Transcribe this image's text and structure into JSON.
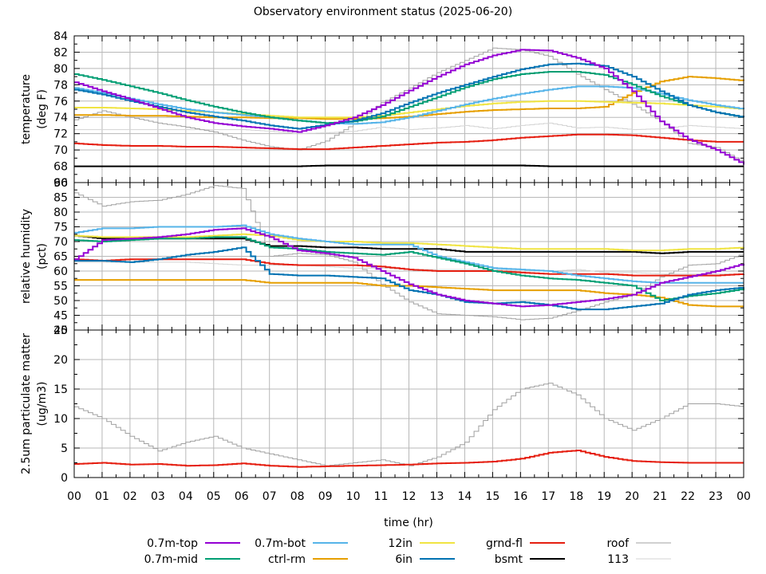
{
  "chart_data": {
    "type": "line",
    "title": "Observatory environment status (2025-06-20)",
    "xlabel": "time (hr)",
    "x_tick_labels": [
      "00",
      "01",
      "02",
      "03",
      "04",
      "05",
      "06",
      "07",
      "08",
      "09",
      "10",
      "11",
      "12",
      "13",
      "14",
      "15",
      "16",
      "17",
      "18",
      "19",
      "20",
      "21",
      "22",
      "23",
      "00"
    ],
    "xlim": [
      0,
      24
    ],
    "grid": true,
    "legend_placement": "bottom",
    "x": [
      0,
      1,
      2,
      3,
      4,
      5,
      6,
      7,
      8,
      9,
      10,
      11,
      12,
      13,
      14,
      15,
      16,
      17,
      18,
      19,
      20,
      21,
      22,
      23,
      24
    ],
    "series_meta": [
      {
        "name": "0.7m-top",
        "color": "#9400d3"
      },
      {
        "name": "0.7m-mid",
        "color": "#009e73"
      },
      {
        "name": "0.7m-bot",
        "color": "#56b4e9"
      },
      {
        "name": "ctrl-rm",
        "color": "#e69f00"
      },
      {
        "name": "12in",
        "color": "#f0e442"
      },
      {
        "name": "6in",
        "color": "#0072b2"
      },
      {
        "name": "grnd-fl",
        "color": "#e51e10"
      },
      {
        "name": "bsmt",
        "color": "#000000"
      },
      {
        "name": "roof",
        "color": "#a0a0a0"
      },
      {
        "name": "113",
        "color": "#d3d3d3"
      }
    ],
    "panels": [
      {
        "name": "temperature",
        "ylabel": [
          "temperature",
          "(deg F)"
        ],
        "ylim": [
          66,
          84
        ],
        "y_ticks": [
          66,
          68,
          70,
          72,
          74,
          76,
          78,
          80,
          82,
          84
        ],
        "series": [
          {
            "name": "0.7m-top",
            "values": [
              78.3,
              77.2,
              76.2,
              75.1,
              74.0,
              73.3,
              72.9,
              72.6,
              72.2,
              73.0,
              74.0,
              75.5,
              77.3,
              79.0,
              80.5,
              81.6,
              82.3,
              82.2,
              81.3,
              80.0,
              77.2,
              73.5,
              71.3,
              70.0,
              68.2
            ]
          },
          {
            "name": "0.7m-mid",
            "values": [
              79.3,
              78.6,
              77.8,
              77.0,
              76.1,
              75.3,
              74.6,
              74.0,
              73.6,
              73.3,
              73.5,
              74.1,
              75.3,
              76.5,
              77.7,
              78.7,
              79.3,
              79.6,
              79.6,
              79.2,
              78.0,
              76.6,
              75.5,
              74.6,
              74.0
            ]
          },
          {
            "name": "0.7m-bot",
            "values": [
              77.6,
              77.0,
              76.3,
              75.6,
              75.0,
              74.6,
              74.3,
              74.0,
              73.6,
              73.3,
              73.2,
              73.4,
              74.0,
              74.8,
              75.6,
              76.3,
              76.9,
              77.4,
              77.8,
              77.8,
              77.6,
              76.9,
              76.1,
              75.5,
              75.0
            ]
          },
          {
            "name": "ctrl-rm",
            "values": [
              74.3,
              74.3,
              74.2,
              74.2,
              74.1,
              74.0,
              74.0,
              73.9,
              73.9,
              73.8,
              73.8,
              73.9,
              74.1,
              74.4,
              74.7,
              74.9,
              75.0,
              75.1,
              75.1,
              75.3,
              77.0,
              78.4,
              79.0,
              78.8,
              78.5
            ]
          },
          {
            "name": "12in",
            "values": [
              75.2,
              75.2,
              75.1,
              75.0,
              74.8,
              74.6,
              74.4,
              74.2,
              74.0,
              74.0,
              74.0,
              74.2,
              74.6,
              75.0,
              75.4,
              75.7,
              75.9,
              76.0,
              76.0,
              75.9,
              75.8,
              75.7,
              75.5,
              75.3,
              75.0
            ]
          },
          {
            "name": "6in",
            "values": [
              77.4,
              76.8,
              76.0,
              75.3,
              74.6,
              74.1,
              73.6,
              73.0,
              72.6,
              73.1,
              73.6,
              74.5,
              75.8,
              77.0,
              78.0,
              79.0,
              79.9,
              80.5,
              80.6,
              80.3,
              79.0,
              77.2,
              75.5,
              74.6,
              74.0
            ]
          },
          {
            "name": "grnd-fl",
            "values": [
              70.8,
              70.6,
              70.5,
              70.5,
              70.4,
              70.4,
              70.3,
              70.2,
              70.1,
              70.1,
              70.3,
              70.5,
              70.7,
              70.9,
              71.0,
              71.2,
              71.5,
              71.7,
              71.9,
              71.9,
              71.8,
              71.5,
              71.2,
              71.0,
              71.0
            ]
          },
          {
            "name": "bsmt",
            "values": [
              68.0,
              68.0,
              68.0,
              68.0,
              68.0,
              68.0,
              68.0,
              68.0,
              68.0,
              68.1,
              68.1,
              68.1,
              68.1,
              68.1,
              68.1,
              68.1,
              68.1,
              68.0,
              68.0,
              68.0,
              68.0,
              68.0,
              68.0,
              68.0,
              68.0
            ]
          },
          {
            "name": "roof",
            "values": [
              73.7,
              74.8,
              74.0,
              73.3,
              72.8,
              72.2,
              71.2,
              70.4,
              70.0,
              71.1,
              73.2,
              75.8,
              77.6,
              79.5,
              81.0,
              82.5,
              82.3,
              81.5,
              79.3,
              77.4,
              75.6,
              73.5,
              70.8,
              70.3,
              68.4
            ]
          },
          {
            "name": "113",
            "values": [
              72.5,
              72.5,
              72.5,
              72.5,
              72.5,
              72.5,
              72.5,
              72.3,
              72.0,
              72.1,
              72.3,
              72.8,
              72.5,
              72.7,
              73.0,
              72.6,
              73.0,
              73.3,
              72.7,
              72.8,
              72.5,
              72.6,
              73.0,
              72.8,
              72.6
            ]
          }
        ]
      },
      {
        "name": "humidity",
        "ylabel": [
          "relative humidity",
          "(pct)"
        ],
        "ylim": [
          40,
          90
        ],
        "y_ticks": [
          40,
          45,
          50,
          55,
          60,
          65,
          70,
          75,
          80,
          85,
          90
        ],
        "series": [
          {
            "name": "0.7m-top",
            "values": [
              64.0,
              70.5,
              71.0,
              71.5,
              72.5,
              74.0,
              74.5,
              71.5,
              67.0,
              66.0,
              64.5,
              60.0,
              55.5,
              52.0,
              50.0,
              49.0,
              48.0,
              48.5,
              49.5,
              50.5,
              52.0,
              56.0,
              58.0,
              60.0,
              62.5
            ]
          },
          {
            "name": "0.7m-mid",
            "values": [
              70.5,
              70.0,
              70.5,
              71.0,
              71.0,
              71.5,
              71.5,
              68.0,
              67.5,
              66.5,
              66.0,
              65.5,
              66.5,
              64.5,
              62.5,
              60.0,
              58.5,
              57.5,
              57.0,
              56.0,
              55.0,
              50.0,
              51.5,
              52.5,
              54.0
            ]
          },
          {
            "name": "0.7m-bot",
            "values": [
              73.0,
              74.5,
              74.5,
              75.0,
              75.0,
              75.0,
              75.5,
              72.5,
              71.0,
              70.0,
              69.0,
              69.0,
              69.0,
              65.0,
              63.0,
              61.0,
              60.5,
              60.0,
              58.5,
              57.5,
              56.5,
              56.0,
              56.0,
              56.0,
              56.0
            ]
          },
          {
            "name": "ctrl-rm",
            "values": [
              57.0,
              57.0,
              57.0,
              57.0,
              57.0,
              57.0,
              57.0,
              56.0,
              56.0,
              56.0,
              56.0,
              55.0,
              55.0,
              54.5,
              54.0,
              53.5,
              53.5,
              53.5,
              53.5,
              52.5,
              52.0,
              51.0,
              48.5,
              48.0,
              48.0
            ]
          },
          {
            "name": "12in",
            "values": [
              72.0,
              71.5,
              71.5,
              71.5,
              71.5,
              72.0,
              72.5,
              72.0,
              70.5,
              70.0,
              70.0,
              69.5,
              69.5,
              69.0,
              68.5,
              68.0,
              67.5,
              67.5,
              67.5,
              67.5,
              67.0,
              67.0,
              67.5,
              67.5,
              68.0
            ]
          },
          {
            "name": "6in",
            "values": [
              63.5,
              63.5,
              63.0,
              64.0,
              65.5,
              66.5,
              68.0,
              59.0,
              58.5,
              58.5,
              58.0,
              57.5,
              53.5,
              52.0,
              49.5,
              49.0,
              49.5,
              48.5,
              47.0,
              47.0,
              48.0,
              49.0,
              52.0,
              53.5,
              54.5
            ]
          },
          {
            "name": "grnd-fl",
            "values": [
              64.0,
              63.5,
              64.0,
              64.0,
              64.0,
              64.0,
              64.0,
              62.5,
              62.0,
              62.0,
              62.0,
              61.5,
              60.5,
              60.0,
              60.0,
              60.0,
              59.5,
              59.0,
              59.0,
              59.0,
              58.5,
              58.5,
              58.5,
              58.5,
              59.0
            ]
          },
          {
            "name": "bsmt",
            "values": [
              72.0,
              71.0,
              71.0,
              71.0,
              71.0,
              71.0,
              71.0,
              68.5,
              68.5,
              68.0,
              68.0,
              67.5,
              67.5,
              67.5,
              66.5,
              66.5,
              66.5,
              66.5,
              66.5,
              66.5,
              66.5,
              66.0,
              66.5,
              66.5,
              66.5
            ]
          },
          {
            "name": "roof",
            "values": [
              86.5,
              82.0,
              83.5,
              84.0,
              86.0,
              89.0,
              88.0,
              65.0,
              66.0,
              65.5,
              63.0,
              55.5,
              49.5,
              45.5,
              45.0,
              44.5,
              43.5,
              44.0,
              46.5,
              49.5,
              52.0,
              58.0,
              62.0,
              62.5,
              66.0
            ]
          },
          {
            "name": "113",
            "values": [
              63.0,
              63.0,
              63.0,
              63.0,
              63.0,
              62.5,
              62.0,
              62.0,
              62.0,
              61.5,
              61.0,
              61.0,
              60.5,
              60.5,
              60.5,
              60.5,
              60.0,
              60.0,
              60.5,
              59.5,
              59.5,
              59.0,
              59.0,
              59.0,
              59.0
            ]
          }
        ]
      },
      {
        "name": "particulate",
        "ylabel": [
          "2.5um particulate matter",
          "(ug/m3)"
        ],
        "ylim": [
          0,
          25
        ],
        "y_ticks": [
          0,
          5,
          10,
          15,
          20,
          25
        ],
        "series": [
          {
            "name": "grnd-fl",
            "values": [
              2.3,
              2.5,
              2.2,
              2.3,
              2.0,
              2.1,
              2.4,
              2.0,
              1.8,
              1.9,
              2.0,
              2.1,
              2.2,
              2.4,
              2.5,
              2.7,
              3.2,
              4.2,
              4.6,
              3.5,
              2.8,
              2.6,
              2.5,
              2.5,
              2.5
            ]
          },
          {
            "name": "roof",
            "values": [
              12.0,
              10.0,
              7.0,
              4.5,
              6.0,
              7.0,
              5.0,
              4.0,
              3.0,
              2.0,
              2.5,
              3.0,
              2.0,
              3.5,
              6.0,
              11.5,
              15.0,
              16.0,
              14.0,
              10.0,
              8.0,
              10.0,
              12.5,
              12.5,
              12.0
            ]
          }
        ]
      }
    ]
  }
}
